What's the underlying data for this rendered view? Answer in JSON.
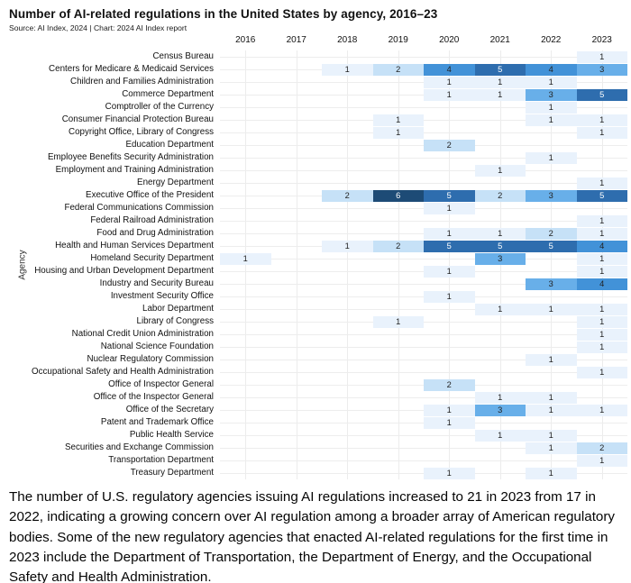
{
  "header": {
    "title": "Number of AI-related regulations in the United States by agency, 2016–23",
    "source": "Source: AI Index, 2024 | Chart: 2024 AI Index report"
  },
  "chart_data": {
    "type": "heatmap",
    "title": "Number of AI-related regulations in the United States by agency, 2016–23",
    "xlabel": "",
    "ylabel": "Agency",
    "x_categories": [
      "2016",
      "2017",
      "2018",
      "2019",
      "2020",
      "2021",
      "2022",
      "2023"
    ],
    "legend_position": "none",
    "grid": true,
    "value_range": [
      1,
      6
    ],
    "colors": {
      "1": "#e9f2fc",
      "2": "#c6e1f7",
      "3": "#68afe9",
      "4": "#4292d8",
      "5": "#2e6dae",
      "6": "#1d4b76"
    },
    "cell_text_dark": "#222222",
    "cell_text_light": "#ffffff",
    "white_text_min_value": 5,
    "rows": [
      {
        "agency": "Census Bureau",
        "values": [
          null,
          null,
          null,
          null,
          null,
          null,
          null,
          1
        ]
      },
      {
        "agency": "Centers for Medicare & Medicaid Services",
        "values": [
          null,
          null,
          1,
          2,
          4,
          5,
          4,
          3
        ]
      },
      {
        "agency": "Children and Families Administration",
        "values": [
          null,
          null,
          null,
          null,
          1,
          1,
          1,
          null
        ]
      },
      {
        "agency": "Commerce Department",
        "values": [
          null,
          null,
          null,
          null,
          1,
          1,
          3,
          5
        ]
      },
      {
        "agency": "Comptroller of the Currency",
        "values": [
          null,
          null,
          null,
          null,
          null,
          null,
          1,
          null
        ]
      },
      {
        "agency": "Consumer Financial Protection Bureau",
        "values": [
          null,
          null,
          null,
          1,
          null,
          null,
          1,
          1
        ]
      },
      {
        "agency": "Copyright Office, Library of Congress",
        "values": [
          null,
          null,
          null,
          1,
          null,
          null,
          null,
          1
        ]
      },
      {
        "agency": "Education Department",
        "values": [
          null,
          null,
          null,
          null,
          2,
          null,
          null,
          null
        ]
      },
      {
        "agency": "Employee Benefits Security Administration",
        "values": [
          null,
          null,
          null,
          null,
          null,
          null,
          1,
          null
        ]
      },
      {
        "agency": "Employment and Training Administration",
        "values": [
          null,
          null,
          null,
          null,
          null,
          1,
          null,
          null
        ]
      },
      {
        "agency": "Energy Department",
        "values": [
          null,
          null,
          null,
          null,
          null,
          null,
          null,
          1
        ]
      },
      {
        "agency": "Executive Office of the President",
        "values": [
          null,
          null,
          2,
          6,
          5,
          2,
          3,
          5
        ]
      },
      {
        "agency": "Federal Communications Commission",
        "values": [
          null,
          null,
          null,
          null,
          1,
          null,
          null,
          null
        ]
      },
      {
        "agency": "Federal Railroad Administration",
        "values": [
          null,
          null,
          null,
          null,
          null,
          null,
          null,
          1
        ]
      },
      {
        "agency": "Food and Drug Administration",
        "values": [
          null,
          null,
          null,
          null,
          1,
          1,
          2,
          1
        ]
      },
      {
        "agency": "Health and Human Services Department",
        "values": [
          null,
          null,
          1,
          2,
          5,
          5,
          5,
          4
        ]
      },
      {
        "agency": "Homeland Security Department",
        "values": [
          1,
          null,
          null,
          null,
          null,
          3,
          null,
          1
        ]
      },
      {
        "agency": "Housing and Urban Development Department",
        "values": [
          null,
          null,
          null,
          null,
          1,
          null,
          null,
          1
        ]
      },
      {
        "agency": "Industry and Security Bureau",
        "values": [
          null,
          null,
          null,
          null,
          null,
          null,
          3,
          4
        ]
      },
      {
        "agency": "Investment Security Office",
        "values": [
          null,
          null,
          null,
          null,
          1,
          null,
          null,
          null
        ]
      },
      {
        "agency": "Labor Department",
        "values": [
          null,
          null,
          null,
          null,
          null,
          1,
          1,
          1
        ]
      },
      {
        "agency": "Library of Congress",
        "values": [
          null,
          null,
          null,
          1,
          null,
          null,
          null,
          1
        ]
      },
      {
        "agency": "National Credit Union Administration",
        "values": [
          null,
          null,
          null,
          null,
          null,
          null,
          null,
          1
        ]
      },
      {
        "agency": "National Science Foundation",
        "values": [
          null,
          null,
          null,
          null,
          null,
          null,
          null,
          1
        ]
      },
      {
        "agency": "Nuclear Regulatory Commission",
        "values": [
          null,
          null,
          null,
          null,
          null,
          null,
          1,
          null
        ]
      },
      {
        "agency": "Occupational Safety and Health Administration",
        "values": [
          null,
          null,
          null,
          null,
          null,
          null,
          null,
          1
        ]
      },
      {
        "agency": "Office of Inspector General",
        "values": [
          null,
          null,
          null,
          null,
          2,
          null,
          null,
          null
        ]
      },
      {
        "agency": "Office of the Inspector General",
        "values": [
          null,
          null,
          null,
          null,
          null,
          1,
          1,
          null
        ]
      },
      {
        "agency": "Office of the Secretary",
        "values": [
          null,
          null,
          null,
          null,
          1,
          3,
          1,
          1
        ]
      },
      {
        "agency": "Patent and Trademark Office",
        "values": [
          null,
          null,
          null,
          null,
          1,
          null,
          null,
          null
        ]
      },
      {
        "agency": "Public Health Service",
        "values": [
          null,
          null,
          null,
          null,
          null,
          1,
          1,
          null
        ]
      },
      {
        "agency": "Securities and Exchange Commission",
        "values": [
          null,
          null,
          null,
          null,
          null,
          null,
          1,
          2
        ]
      },
      {
        "agency": "Transportation Department",
        "values": [
          null,
          null,
          null,
          null,
          null,
          null,
          null,
          1
        ]
      },
      {
        "agency": "Treasury Department",
        "values": [
          null,
          null,
          null,
          null,
          1,
          null,
          1,
          null
        ]
      }
    ]
  },
  "footer": {
    "text": "The number of U.S. regulatory agencies issuing AI regulations increased to 21 in 2023 from 17 in 2022, indicating a growing concern over AI regulation among a broader array of American regulatory bodies. Some of the new regulatory agencies that enacted AI-related regulations for the first time in 2023 include the Department of Transportation, the Department of Energy, and the Occupational Safety and Health Administration."
  }
}
